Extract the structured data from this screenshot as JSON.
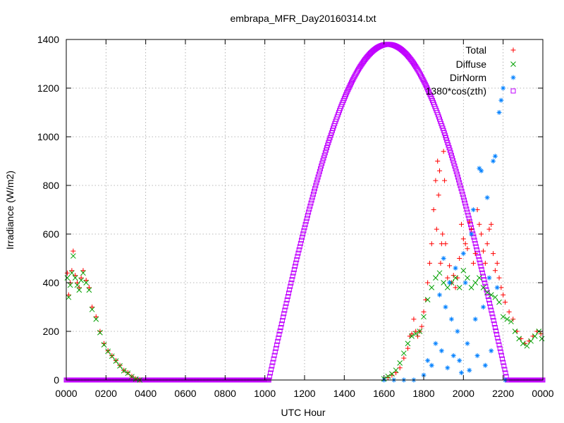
{
  "chart_data": {
    "type": "scatter",
    "title": "embrapa_MFR_Day20160314.txt",
    "xlabel": "UTC Hour",
    "ylabel": "Irradiance (W/m2)",
    "xlim": [
      0,
      24
    ],
    "ylim": [
      0,
      1400
    ],
    "grid": true,
    "legend_position": "top-right",
    "x_ticks": [
      {
        "value": 0,
        "label": "0000"
      },
      {
        "value": 2,
        "label": "0200"
      },
      {
        "value": 4,
        "label": "0400"
      },
      {
        "value": 6,
        "label": "0600"
      },
      {
        "value": 8,
        "label": "0800"
      },
      {
        "value": 10,
        "label": "1000"
      },
      {
        "value": 12,
        "label": "1200"
      },
      {
        "value": 14,
        "label": "1400"
      },
      {
        "value": 16,
        "label": "1600"
      },
      {
        "value": 18,
        "label": "1800"
      },
      {
        "value": 20,
        "label": "2000"
      },
      {
        "value": 22,
        "label": "2200"
      },
      {
        "value": 24,
        "label": "0000"
      }
    ],
    "y_ticks": [
      0,
      200,
      400,
      600,
      800,
      1000,
      1200,
      1400
    ],
    "series": [
      {
        "name": "Total",
        "marker": "plus",
        "color": "#ff0000",
        "x": [
          0.05,
          0.12,
          0.2,
          0.28,
          0.35,
          0.45,
          0.55,
          0.65,
          0.75,
          0.85,
          1.0,
          1.15,
          1.3,
          1.5,
          1.7,
          1.9,
          2.1,
          2.3,
          2.5,
          2.7,
          2.9,
          3.1,
          3.3,
          3.5,
          3.7,
          16.2,
          16.4,
          16.6,
          16.8,
          17.0,
          17.2,
          17.3,
          17.4,
          17.5,
          17.6,
          17.7,
          17.8,
          17.9,
          18.0,
          18.1,
          18.2,
          18.3,
          18.4,
          18.5,
          18.6,
          18.65,
          18.7,
          18.75,
          18.8,
          18.85,
          18.9,
          18.95,
          19.0,
          19.05,
          19.1,
          19.2,
          19.3,
          19.4,
          19.5,
          19.6,
          19.7,
          19.8,
          19.9,
          20.0,
          20.1,
          20.2,
          20.3,
          20.4,
          20.5,
          20.6,
          20.7,
          20.8,
          20.9,
          21.0,
          21.1,
          21.2,
          21.3,
          21.4,
          21.5,
          21.6,
          21.7,
          21.8,
          21.9,
          22.0,
          22.1,
          22.3,
          22.5,
          22.7,
          22.9,
          23.1,
          23.3,
          23.5,
          23.7,
          23.9
        ],
        "y": [
          440,
          350,
          400,
          450,
          530,
          430,
          400,
          380,
          420,
          450,
          410,
          380,
          300,
          260,
          200,
          150,
          120,
          100,
          80,
          60,
          40,
          30,
          15,
          5,
          0,
          10,
          20,
          30,
          50,
          90,
          130,
          180,
          190,
          250,
          200,
          180,
          200,
          220,
          280,
          330,
          400,
          480,
          560,
          700,
          820,
          620,
          900,
          760,
          860,
          480,
          560,
          600,
          940,
          820,
          560,
          420,
          470,
          400,
          430,
          380,
          420,
          500,
          640,
          580,
          560,
          540,
          650,
          620,
          480,
          520,
          700,
          640,
          600,
          530,
          480,
          560,
          620,
          640,
          520,
          450,
          480,
          420,
          380,
          350,
          320,
          280,
          250,
          200,
          170,
          150,
          160,
          180,
          200,
          190
        ]
      },
      {
        "name": "Diffuse",
        "marker": "cross",
        "color": "#00a000",
        "x": [
          0.05,
          0.12,
          0.2,
          0.28,
          0.35,
          0.45,
          0.55,
          0.65,
          0.75,
          0.85,
          1.0,
          1.15,
          1.3,
          1.5,
          1.7,
          1.9,
          2.1,
          2.3,
          2.5,
          2.7,
          2.9,
          3.1,
          3.3,
          3.5,
          3.7,
          16.0,
          16.2,
          16.4,
          16.6,
          16.8,
          17.0,
          17.2,
          17.4,
          17.6,
          17.8,
          18.0,
          18.2,
          18.4,
          18.6,
          18.8,
          19.0,
          19.2,
          19.4,
          19.6,
          19.8,
          20.0,
          20.2,
          20.4,
          20.6,
          20.8,
          21.0,
          21.2,
          21.4,
          21.6,
          21.8,
          22.0,
          22.2,
          22.4,
          22.6,
          22.8,
          23.0,
          23.2,
          23.4,
          23.6,
          23.8,
          23.95
        ],
        "y": [
          420,
          340,
          390,
          440,
          510,
          420,
          390,
          370,
          410,
          440,
          400,
          370,
          290,
          250,
          195,
          145,
          118,
          98,
          78,
          58,
          38,
          28,
          14,
          4,
          0,
          5,
          15,
          25,
          40,
          70,
          110,
          150,
          180,
          190,
          200,
          260,
          330,
          380,
          420,
          440,
          400,
          380,
          400,
          420,
          380,
          450,
          420,
          380,
          400,
          420,
          380,
          360,
          350,
          340,
          320,
          260,
          250,
          240,
          200,
          170,
          150,
          140,
          160,
          180,
          200,
          170
        ]
      },
      {
        "name": "DirNorm",
        "marker": "star",
        "color": "#0080ff",
        "x": [
          16.0,
          16.5,
          17.0,
          17.5,
          18.0,
          18.2,
          18.4,
          18.6,
          18.8,
          18.9,
          19.0,
          19.1,
          19.2,
          19.3,
          19.4,
          19.5,
          19.6,
          19.7,
          19.8,
          19.9,
          20.0,
          20.1,
          20.2,
          20.3,
          20.4,
          20.5,
          20.6,
          20.7,
          20.8,
          20.9,
          21.0,
          21.1,
          21.2,
          21.3,
          21.4,
          21.5,
          21.6,
          21.7,
          21.8,
          21.9,
          22.0,
          22.1
        ],
        "y": [
          0,
          0,
          0,
          0,
          20,
          80,
          60,
          150,
          350,
          120,
          500,
          300,
          50,
          400,
          250,
          100,
          460,
          200,
          80,
          30,
          520,
          400,
          150,
          40,
          600,
          700,
          250,
          100,
          870,
          860,
          300,
          60,
          750,
          420,
          120,
          900,
          920,
          380,
          1100,
          1150,
          1200,
          0
        ]
      },
      {
        "name": "1380*cos(zth)",
        "marker": "square",
        "color": "#c000ff",
        "amplitude": 1380,
        "noon_utc": 16.2,
        "sunrise_utc": 10.2,
        "sunset_utc": 22.2
      }
    ]
  }
}
